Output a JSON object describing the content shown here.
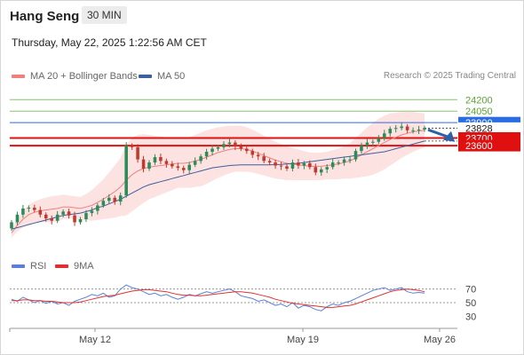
{
  "header": {
    "symbol": "Hang Seng",
    "timeframe": "30 MIN",
    "datetime": "Thursday, May 22, 2025 1:22:56 AM CET"
  },
  "legend": {
    "ma20_label": "MA 20 + Bollinger Bands",
    "ma50_label": "MA 50",
    "credit": "Research © 2025 Trading Central"
  },
  "rsi_legend": {
    "rsi_label": "RSI",
    "ma9_label": "9MA"
  },
  "colors": {
    "ma20": "#f08080",
    "ma50": "#3d5f9f",
    "band_fill": "#fde2e2",
    "up_candle": "#2e8b57",
    "down_candle": "#c0392b",
    "target_line": "#8cc46a",
    "target_text": "#5aa532",
    "pivot": "#2a6de0",
    "support": "#e01010",
    "rsi": "#5b7fd6",
    "rsi_ma": "#e03030",
    "arrow": "#2f5fa8"
  },
  "chart_data": [
    {
      "type": "candlestick",
      "title": "Hang Seng",
      "timeframe": "30 MIN",
      "x_tick_labels": [
        "May 12",
        "May 19",
        "May 26"
      ],
      "close_path": [
        22600,
        22700,
        22780,
        22790,
        22760,
        22700,
        22650,
        22620,
        22700,
        22740,
        22690,
        22600,
        22640,
        22720,
        22750,
        22820,
        22880,
        22920,
        22870,
        22950,
        23600,
        23580,
        23420,
        23300,
        23380,
        23450,
        23400,
        23360,
        23330,
        23310,
        23280,
        23350,
        23400,
        23460,
        23520,
        23560,
        23580,
        23620,
        23640,
        23590,
        23560,
        23530,
        23480,
        23460,
        23400,
        23380,
        23340,
        23330,
        23300,
        23380,
        23340,
        23370,
        23320,
        23250,
        23290,
        23320,
        23380,
        23380,
        23420,
        23420,
        23530,
        23600,
        23640,
        23650,
        23700,
        23760,
        23820,
        23830,
        23850,
        23800,
        23800,
        23810,
        23830
      ],
      "levels": [
        {
          "label": "24200",
          "value": 24200,
          "kind": "resistance"
        },
        {
          "label": "24050",
          "value": 24050,
          "kind": "resistance"
        },
        {
          "label": "23900",
          "value": 23900,
          "kind": "pivot"
        },
        {
          "label": "23828",
          "value": 23828,
          "kind": "last"
        },
        {
          "label": "23700",
          "value": 23700,
          "kind": "support"
        },
        {
          "label": "23600",
          "value": 23600,
          "kind": "support"
        }
      ],
      "ma20": [
        22460,
        22560,
        22640,
        22700,
        22730,
        22750,
        22760,
        22770,
        22780,
        22800,
        22800,
        22790,
        22780,
        22800,
        22820,
        22860,
        22900,
        22950,
        23000,
        23060,
        23150,
        23220,
        23270,
        23300,
        23320,
        23330,
        23340,
        23350,
        23360,
        23370,
        23370,
        23380,
        23400,
        23420,
        23450,
        23480,
        23510,
        23530,
        23550,
        23560,
        23560,
        23550,
        23530,
        23500,
        23470,
        23440,
        23410,
        23390,
        23370,
        23360,
        23350,
        23340,
        23330,
        23330,
        23330,
        23340,
        23350,
        23360,
        23380,
        23400,
        23440,
        23480,
        23520,
        23560,
        23600,
        23640,
        23680,
        23710,
        23740,
        23760,
        23780,
        23790,
        23800
      ],
      "ma50": [
        22510,
        22530,
        22550,
        22570,
        22590,
        22610,
        22630,
        22650,
        22670,
        22690,
        22700,
        22710,
        22720,
        22740,
        22760,
        22790,
        22810,
        22840,
        22870,
        22900,
        22940,
        22980,
        23020,
        23060,
        23090,
        23110,
        23130,
        23150,
        23170,
        23190,
        23210,
        23230,
        23250,
        23270,
        23290,
        23310,
        23320,
        23330,
        23340,
        23345,
        23350,
        23350,
        23350,
        23350,
        23350,
        23350,
        23352,
        23355,
        23360,
        23365,
        23370,
        23380,
        23390,
        23400,
        23410,
        23420,
        23430,
        23440,
        23450,
        23460,
        23470,
        23480,
        23490,
        23500,
        23510,
        23520,
        23540,
        23560,
        23580,
        23600,
        23620,
        23640,
        23660
      ],
      "bollinger_halfwidth": [
        60,
        80,
        110,
        130,
        140,
        150,
        160,
        170,
        170,
        160,
        150,
        150,
        150,
        170,
        200,
        230,
        260,
        300,
        340,
        380,
        460,
        480,
        470,
        450,
        420,
        400,
        380,
        360,
        340,
        320,
        320,
        330,
        340,
        350,
        350,
        340,
        330,
        320,
        310,
        300,
        300,
        290,
        280,
        270,
        260,
        250,
        240,
        230,
        220,
        210,
        200,
        190,
        180,
        180,
        180,
        180,
        190,
        200,
        210,
        230,
        260,
        290,
        320,
        340,
        350,
        350,
        340,
        320,
        300,
        280,
        260,
        240,
        220
      ],
      "y_range": [
        22200,
        24400
      ]
    },
    {
      "type": "line",
      "title": "RSI",
      "y_tick_labels": [
        "70",
        "50",
        "30"
      ],
      "ylim": [
        20,
        80
      ],
      "series": [
        {
          "name": "RSI",
          "values": [
            55,
            52,
            58,
            54,
            50,
            53,
            49,
            52,
            48,
            50,
            46,
            52,
            55,
            58,
            62,
            60,
            64,
            58,
            60,
            70,
            76,
            72,
            70,
            66,
            62,
            64,
            60,
            62,
            58,
            55,
            58,
            62,
            60,
            63,
            66,
            64,
            66,
            68,
            70,
            66,
            60,
            58,
            56,
            52,
            54,
            50,
            46,
            48,
            44,
            50,
            42,
            46,
            44,
            40,
            38,
            44,
            48,
            46,
            50,
            52,
            56,
            60,
            64,
            68,
            70,
            72,
            68,
            70,
            72,
            66,
            64,
            65,
            64
          ]
        },
        {
          "name": "9MA",
          "values": [
            53,
            53,
            54,
            54,
            53,
            53,
            52,
            52,
            51,
            50,
            50,
            50,
            51,
            53,
            55,
            57,
            59,
            60,
            61,
            63,
            65,
            67,
            68,
            69,
            69,
            68,
            67,
            66,
            64,
            62,
            61,
            61,
            60,
            60,
            61,
            62,
            63,
            64,
            65,
            66,
            66,
            65,
            64,
            62,
            60,
            58,
            55,
            53,
            51,
            49,
            48,
            47,
            46,
            45,
            44,
            43,
            43,
            44,
            45,
            46,
            48,
            51,
            54,
            57,
            60,
            63,
            66,
            68,
            69,
            70,
            69,
            68,
            66
          ]
        }
      ]
    }
  ]
}
